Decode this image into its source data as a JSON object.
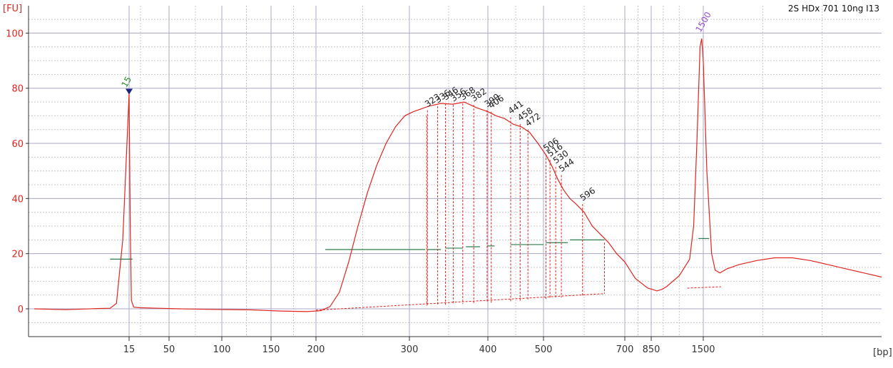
{
  "chart_data": {
    "type": "line",
    "title": "2S HDx 701 10ng I13",
    "ylabel": "[FU]",
    "xlabel": "[bp]",
    "ylim": [
      -10,
      105
    ],
    "yticks": [
      0,
      20,
      40,
      60,
      80,
      100
    ],
    "grid": true,
    "x_ticks": [
      {
        "label": "15",
        "bp": 15
      },
      {
        "label": "50",
        "bp": 50
      },
      {
        "label": "100",
        "bp": 100
      },
      {
        "label": "150",
        "bp": 150
      },
      {
        "label": "200",
        "bp": 200
      },
      {
        "label": "300",
        "bp": 300
      },
      {
        "label": "400",
        "bp": 400
      },
      {
        "label": "500",
        "bp": 500
      },
      {
        "label": "700",
        "bp": 700
      },
      {
        "label": "850",
        "bp": 850
      },
      {
        "label": "1500",
        "bp": 1500
      }
    ],
    "ladder_peaks": [
      {
        "label": "15",
        "bp": 15,
        "fu": 78,
        "color": "#2e8b2e"
      },
      {
        "label": "1500",
        "bp": 1500,
        "fu": 98,
        "color": "#9b4dd6"
      }
    ],
    "labeled_peaks": [
      "323",
      "336",
      "346",
      "356",
      "368",
      "382",
      "399",
      "406",
      "441",
      "458",
      "472",
      "506",
      "516",
      "530",
      "544",
      "596"
    ],
    "trace": {
      "color": "#e0241f",
      "points": [
        [
          0,
          0
        ],
        [
          5,
          -0.3
        ],
        [
          10,
          0.1
        ],
        [
          12,
          0.2
        ],
        [
          13,
          2
        ],
        [
          14,
          25
        ],
        [
          15,
          78
        ],
        [
          16,
          30
        ],
        [
          17,
          3
        ],
        [
          19,
          0.6
        ],
        [
          25,
          0.4
        ],
        [
          40,
          0.2
        ],
        [
          60,
          0
        ],
        [
          90,
          -0.2
        ],
        [
          130,
          -0.4
        ],
        [
          160,
          -0.8
        ],
        [
          190,
          -1.0
        ],
        [
          205,
          -0.7
        ],
        [
          215,
          0.8
        ],
        [
          225,
          6
        ],
        [
          235,
          17
        ],
        [
          245,
          30
        ],
        [
          255,
          42
        ],
        [
          265,
          52
        ],
        [
          275,
          60
        ],
        [
          285,
          66
        ],
        [
          295,
          70
        ],
        [
          305,
          71.5
        ],
        [
          315,
          72.5
        ],
        [
          325,
          73.5
        ],
        [
          340,
          74.5
        ],
        [
          355,
          74.2
        ],
        [
          370,
          75
        ],
        [
          385,
          73
        ],
        [
          400,
          71.5
        ],
        [
          415,
          70
        ],
        [
          430,
          69
        ],
        [
          445,
          67
        ],
        [
          460,
          66
        ],
        [
          475,
          64
        ],
        [
          490,
          60
        ],
        [
          505,
          56
        ],
        [
          520,
          52
        ],
        [
          535,
          47
        ],
        [
          550,
          43
        ],
        [
          565,
          40
        ],
        [
          580,
          38
        ],
        [
          600,
          35
        ],
        [
          620,
          30
        ],
        [
          640,
          27
        ],
        [
          660,
          24
        ],
        [
          680,
          20
        ],
        [
          700,
          17
        ],
        [
          730,
          14
        ],
        [
          760,
          11
        ],
        [
          800,
          9
        ],
        [
          830,
          7.5
        ],
        [
          870,
          7
        ],
        [
          920,
          6.5
        ],
        [
          980,
          7
        ],
        [
          1040,
          8
        ],
        [
          1200,
          12
        ],
        [
          1330,
          18
        ],
        [
          1380,
          30
        ],
        [
          1420,
          60
        ],
        [
          1460,
          95
        ],
        [
          1480,
          98
        ],
        [
          1500,
          90
        ],
        [
          1530,
          50
        ],
        [
          1570,
          20
        ],
        [
          1600,
          14
        ],
        [
          1640,
          13
        ],
        [
          1700,
          14.5
        ],
        [
          1800,
          16
        ],
        [
          1950,
          17.5
        ],
        [
          2100,
          18.5
        ],
        [
          2250,
          18.5
        ],
        [
          2400,
          17.5
        ],
        [
          2550,
          16
        ],
        [
          2700,
          14.5
        ],
        [
          2850,
          13
        ],
        [
          3000,
          11.5
        ]
      ]
    }
  }
}
